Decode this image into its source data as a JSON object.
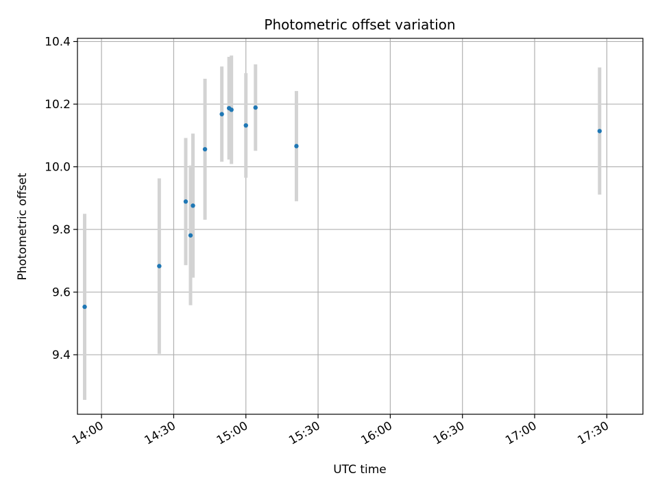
{
  "chart_data": {
    "type": "scatter",
    "title": "Photometric offset variation",
    "xlabel": "UTC time",
    "ylabel": "Photometric offset",
    "x_unit": "time-of-day",
    "xlim": [
      "13:50",
      "17:45"
    ],
    "ylim": [
      9.21,
      10.41
    ],
    "x_ticks": [
      "14:00",
      "14:30",
      "15:00",
      "15:30",
      "16:00",
      "16:30",
      "17:00",
      "17:30"
    ],
    "y_ticks": [
      "9.4",
      "9.6",
      "9.8",
      "10.0",
      "10.2",
      "10.4"
    ],
    "grid": true,
    "colors": {
      "point": "#1f77b4",
      "errorbar": "#d3d3d3",
      "grid": "#b0b0b0"
    },
    "points": [
      {
        "x": "13:53",
        "y": 9.553,
        "err": 0.297
      },
      {
        "x": "14:24",
        "y": 9.683,
        "err": 0.28
      },
      {
        "x": "14:35",
        "y": 9.889,
        "err": 0.203
      },
      {
        "x": "14:37",
        "y": 9.781,
        "err": 0.223
      },
      {
        "x": "14:38",
        "y": 9.876,
        "err": 0.23
      },
      {
        "x": "14:43",
        "y": 10.056,
        "err": 0.225
      },
      {
        "x": "14:50",
        "y": 10.168,
        "err": 0.152
      },
      {
        "x": "14:53",
        "y": 10.187,
        "err": 0.164
      },
      {
        "x": "14:54",
        "y": 10.182,
        "err": 0.173
      },
      {
        "x": "15:00",
        "y": 10.132,
        "err": 0.167
      },
      {
        "x": "15:04",
        "y": 10.189,
        "err": 0.138
      },
      {
        "x": "15:21",
        "y": 10.066,
        "err": 0.176
      },
      {
        "x": "17:27",
        "y": 10.114,
        "err": 0.203
      }
    ]
  }
}
